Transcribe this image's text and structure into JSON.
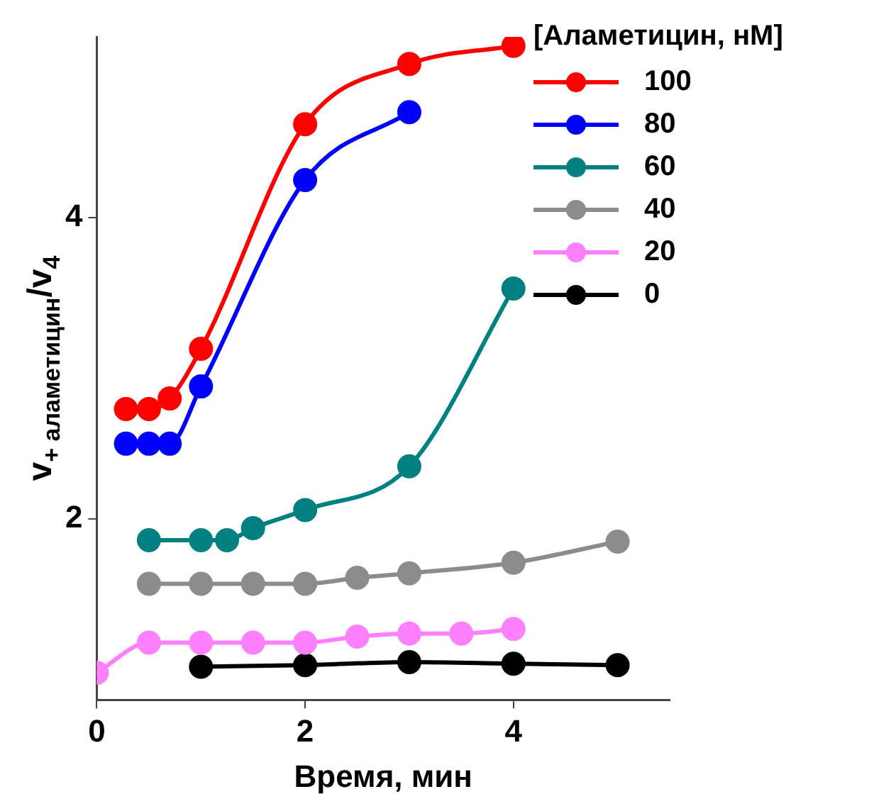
{
  "chart_data": {
    "type": "line",
    "xlabel": "Время, мин",
    "ylabel": "v$_{+ аламетицин}$/v$_{4}$",
    "legend_title": "[Аламетицин, нМ]",
    "legend": "top right",
    "marker": "circle",
    "line_style": "solid",
    "grid": false,
    "xlim": [
      0,
      5.5
    ],
    "xticks": [
      0,
      2,
      4
    ],
    "ylim": [
      0.8,
      5.2
    ],
    "yticks": [
      2,
      4
    ],
    "series": [
      {
        "name": "100",
        "color": "#ff0000",
        "x": [
          0.28,
          0.5,
          0.7,
          1,
          2,
          3,
          4
        ],
        "values": [
          2.73,
          2.73,
          2.8,
          3.13,
          4.62,
          5.02,
          5.14
        ]
      },
      {
        "name": "80",
        "color": "#0000ff",
        "x": [
          0.28,
          0.5,
          0.7,
          1,
          2,
          3
        ],
        "values": [
          2.5,
          2.5,
          2.5,
          2.88,
          4.25,
          4.7
        ]
      },
      {
        "name": "60",
        "color": "#008080",
        "x": [
          0.5,
          1,
          1.25,
          1.5,
          2,
          3,
          4
        ],
        "values": [
          1.86,
          1.86,
          1.86,
          1.94,
          2.06,
          2.35,
          3.53
        ]
      },
      {
        "name": "40",
        "color": "#8c8c8c",
        "x": [
          0.5,
          1,
          1.5,
          2,
          2.5,
          3,
          4,
          5
        ],
        "values": [
          1.57,
          1.57,
          1.57,
          1.57,
          1.61,
          1.64,
          1.71,
          1.85
        ]
      },
      {
        "name": "20",
        "color": "#ff80ff",
        "x": [
          0,
          0.5,
          1,
          1.5,
          2,
          2.5,
          3,
          3.5,
          4
        ],
        "values": [
          0.98,
          1.18,
          1.18,
          1.18,
          1.18,
          1.22,
          1.24,
          1.24,
          1.27
        ]
      },
      {
        "name": "0",
        "color": "#000000",
        "x": [
          1,
          2,
          3,
          4,
          5
        ],
        "values": [
          1.02,
          1.03,
          1.05,
          1.04,
          1.03
        ]
      }
    ]
  }
}
